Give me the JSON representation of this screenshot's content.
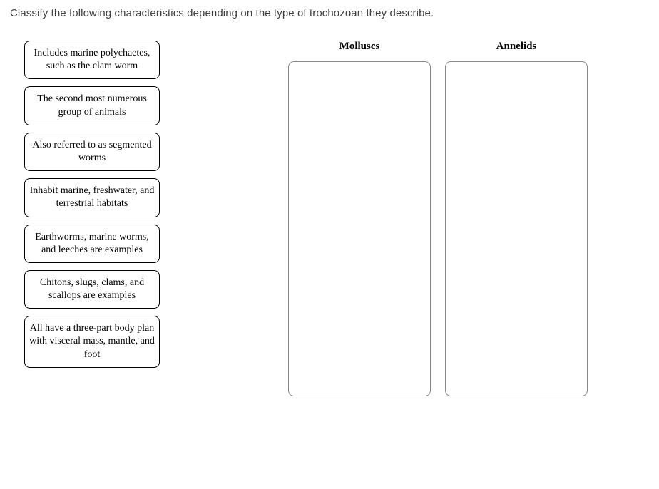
{
  "prompt": "Classify the following characteristics depending on the type of trochozoan they describe.",
  "cards": [
    {
      "text": "Includes marine polychaetes, such as the clam worm"
    },
    {
      "text": "The second most numerous group of animals"
    },
    {
      "text": "Also referred to as segmented worms"
    },
    {
      "text": "Inhabit marine, freshwater, and terrestrial habitats"
    },
    {
      "text": "Earthworms, marine worms, and leeches are examples"
    },
    {
      "text": "Chitons, slugs, clams, and scallops are examples"
    },
    {
      "text": "All have a three-part body plan with visceral mass, mantle, and foot"
    }
  ],
  "targets": [
    {
      "label": "Molluscs"
    },
    {
      "label": "Annelids"
    }
  ],
  "style": {
    "card_border_color": "#000000",
    "card_border_radius": 8,
    "card_font_family": "Georgia, serif",
    "card_font_size": 14,
    "dropzone_border_color": "#888888",
    "dropzone_width": 200,
    "dropzone_height": 470,
    "background_color": "#ffffff",
    "prompt_color": "#404040",
    "prompt_font_size": 15,
    "header_font_weight": "bold"
  }
}
